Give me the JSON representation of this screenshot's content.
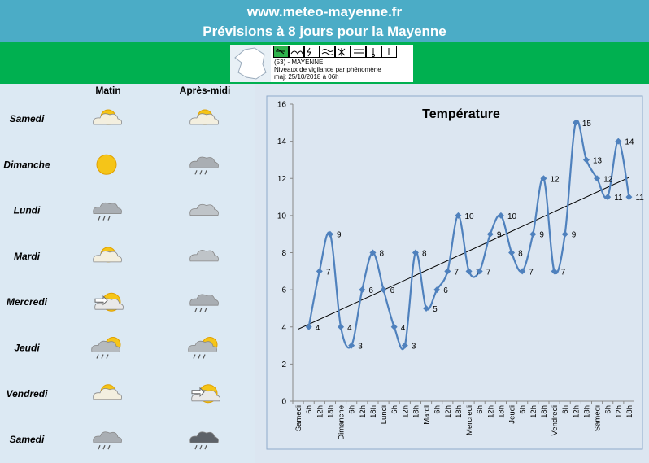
{
  "header": {
    "site": "www.meteo-mayenne.fr",
    "title": "Prévisions à 8 jours pour la Mayenne"
  },
  "vigilance": {
    "department": "(53) - MAYENNE",
    "subtitle": "Niveaux de vigilance par phénomène",
    "updated": "maj: 25/10/2018 à 06h"
  },
  "forecast": {
    "columns": [
      "Matin",
      "Après-midi"
    ],
    "days": [
      "Samedi",
      "Dimanche",
      "Lundi",
      "Mardi",
      "Mercredi",
      "Jeudi",
      "Vendredi",
      "Samedi"
    ]
  },
  "chart_data": {
    "type": "line",
    "title": "Température",
    "categories": [
      "Samedi",
      "6h",
      "12h",
      "18h",
      "Dimanche",
      "6h",
      "12h",
      "18h",
      "Lundi",
      "6h",
      "12h",
      "18h",
      "Mardi",
      "6h",
      "12h",
      "18h",
      "Mercredi",
      "6h",
      "12h",
      "18h",
      "Jeudi",
      "6h",
      "12h",
      "18h",
      "Vendredi",
      "6h",
      "12h",
      "18h",
      "Samedi",
      "6h",
      "12h",
      "18h"
    ],
    "values": [
      null,
      4,
      7,
      9,
      4,
      3,
      6,
      8,
      6,
      4,
      3,
      8,
      5,
      6,
      7,
      10,
      7,
      7,
      9,
      10,
      8,
      7,
      9,
      12,
      7,
      9,
      15,
      13,
      12,
      11,
      14,
      11
    ],
    "color": "#4f81bd",
    "trendline": true,
    "ylim": [
      0,
      16
    ],
    "yticks": [
      0,
      2,
      4,
      6,
      8,
      10,
      12,
      14,
      16
    ]
  }
}
